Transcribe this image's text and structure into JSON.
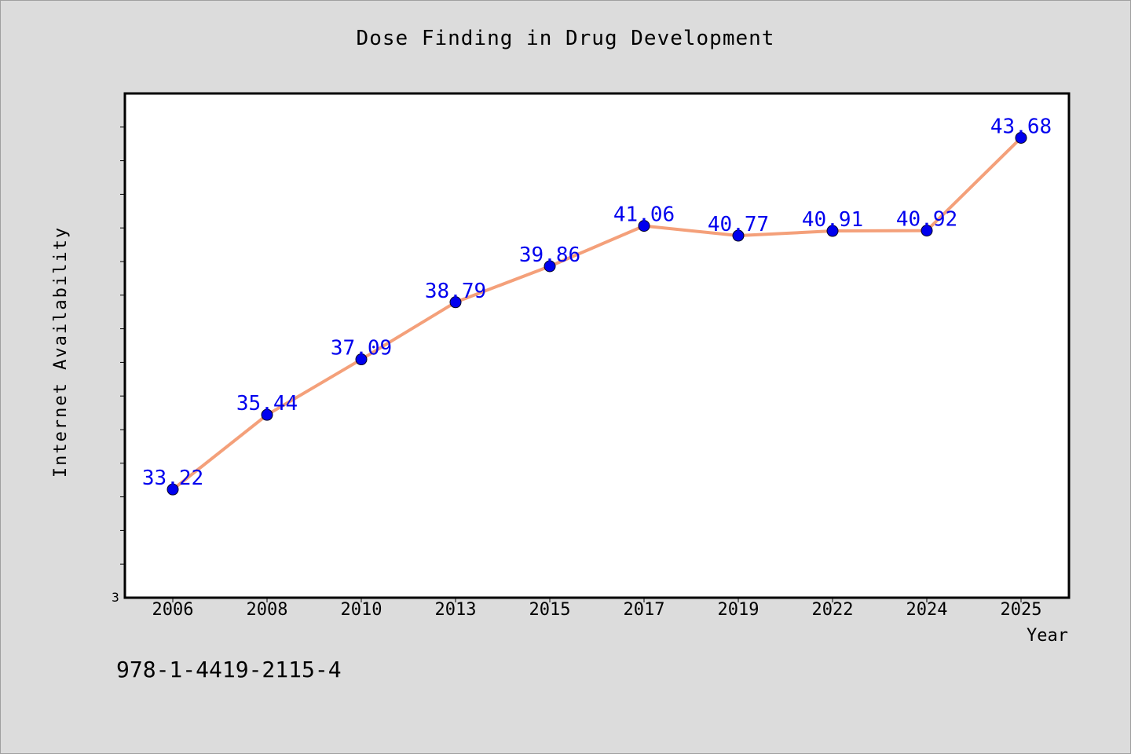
{
  "chart_data": {
    "type": "line",
    "title": "Dose Finding in Drug Development",
    "xlabel": "Year",
    "ylabel": "Internet Availability",
    "categories": [
      "2006",
      "2008",
      "2010",
      "2013",
      "2015",
      "2017",
      "2019",
      "2022",
      "2024",
      "2025"
    ],
    "series": [
      {
        "values": [
          33.22,
          35.44,
          37.09,
          38.79,
          39.86,
          41.06,
          40.77,
          40.91,
          40.92,
          43.68
        ],
        "labels": [
          "33.22",
          "35.44",
          "37.09",
          "38.79",
          "39.86",
          "41.06",
          "40.77",
          "40.91",
          "40.92",
          "43.68"
        ],
        "line_color": "#f4a07a",
        "marker_color": "#0000ee",
        "label_color": "#0000ee"
      }
    ],
    "ylim": [
      30,
      45
    ],
    "y_tick_labels_shown": [
      "3"
    ],
    "grid": false,
    "legend": "none"
  },
  "footer": {
    "isbn": "978-1-4419-2115-4"
  },
  "colors": {
    "background": "#dcdcdc",
    "plot_background": "#ffffff"
  }
}
